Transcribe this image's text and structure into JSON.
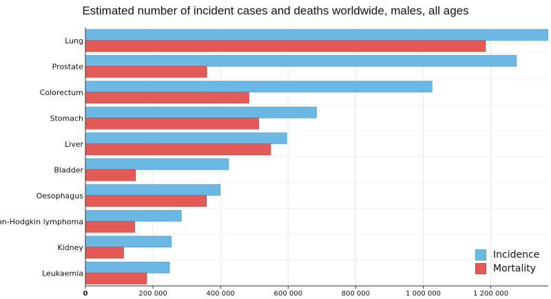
{
  "chart_data": {
    "type": "bar",
    "orientation": "horizontal",
    "title": "Estimated number of incident cases and deaths worldwide, males, all ages",
    "xlabel": "",
    "ylabel": "",
    "categories": [
      "Lung",
      "Prostate",
      "Colorectum",
      "Stomach",
      "Liver",
      "Bladder",
      "Oesophagus",
      "Non-Hodgkin lymphoma",
      "Kidney",
      "Leukaemia"
    ],
    "series": [
      {
        "name": "Incidence",
        "color": "#6cb8e4",
        "values": [
          1369000,
          1276000,
          1026000,
          684000,
          596000,
          424000,
          399000,
          284000,
          254000,
          249000
        ]
      },
      {
        "name": "Mortality",
        "color": "#e35a56",
        "values": [
          1184000,
          359000,
          484000,
          513000,
          548000,
          148000,
          358000,
          146000,
          113000,
          181000
        ]
      }
    ],
    "xlim": [
      0,
      1370000
    ],
    "xticks": [
      0,
      200000,
      400000,
      600000,
      800000,
      1000000,
      1200000
    ],
    "xtick_labels": [
      "0",
      "200 000",
      "400 000",
      "600 000",
      "800 000",
      "1 000 000",
      "1 200 000"
    ],
    "grid": true,
    "legend_position": "bottom-right"
  }
}
